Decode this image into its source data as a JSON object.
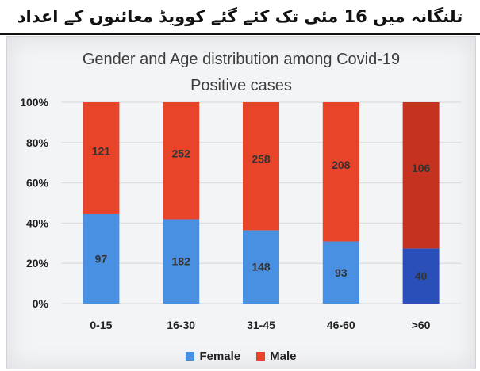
{
  "banner": {
    "text": "تلنگانہ میں 16 مئی تک کئے گئے کوویڈ معائنوں کے اعداد"
  },
  "colors": {
    "female": "#4a90e2",
    "male": "#e8442a",
    "female_dark": "#2a4fb8",
    "male_dark": "#c5321f",
    "grid": "#d6d6d6"
  },
  "chart_data": {
    "type": "bar",
    "stacked": "percent",
    "title_line1": "Gender and Age distribution among Covid-19",
    "title_line2": "Positive cases",
    "categories": [
      "0-15",
      "16-30",
      "31-45",
      "46-60",
      ">60"
    ],
    "series": [
      {
        "name": "Female",
        "values": [
          97,
          182,
          148,
          93,
          40
        ]
      },
      {
        "name": "Male",
        "values": [
          121,
          252,
          258,
          208,
          106
        ]
      }
    ],
    "value_labels": {
      "Female": [
        "97",
        "182",
        "148",
        "93",
        "40"
      ],
      "Male": [
        "121",
        "252",
        "258",
        "208",
        "106"
      ]
    },
    "yticks": [
      "0%",
      "20%",
      "40%",
      "60%",
      "80%",
      "100%"
    ],
    "ylim": [
      0,
      100
    ],
    "grid": true,
    "legend_position": "bottom"
  }
}
